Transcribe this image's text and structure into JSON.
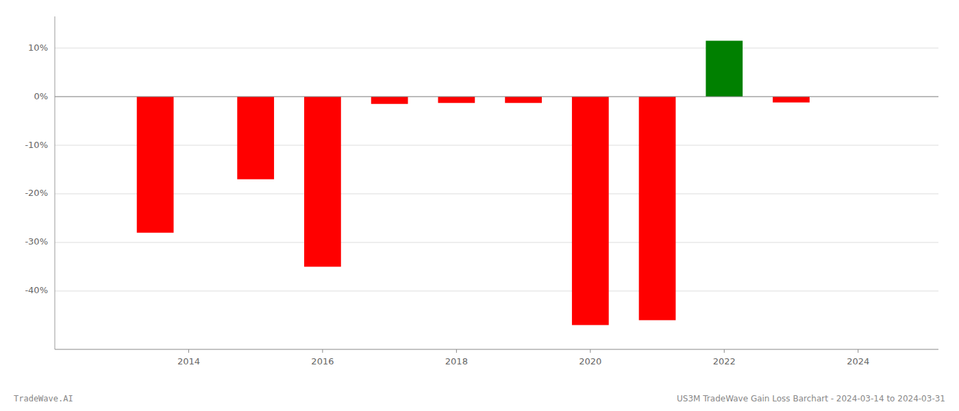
{
  "chart_data": {
    "type": "bar",
    "x": [
      2013.5,
      2015.0,
      2016.0,
      2017.0,
      2018.0,
      2019.0,
      2020.0,
      2021.0,
      2022.0,
      2023.0
    ],
    "values": [
      -0.28,
      -0.17,
      -0.35,
      -0.015,
      -0.013,
      -0.013,
      -0.47,
      -0.46,
      0.115,
      -0.012
    ],
    "colors": [
      "#ff0000",
      "#ff0000",
      "#ff0000",
      "#ff0000",
      "#ff0000",
      "#ff0000",
      "#ff0000",
      "#ff0000",
      "#008000",
      "#ff0000"
    ],
    "ylim": [
      -0.52,
      0.165
    ],
    "yticks": [
      {
        "value": -0.4,
        "label": "-40%"
      },
      {
        "value": -0.3,
        "label": "-30%"
      },
      {
        "value": -0.2,
        "label": "-20%"
      },
      {
        "value": -0.1,
        "label": "-10%"
      },
      {
        "value": 0.0,
        "label": "0%"
      },
      {
        "value": 0.1,
        "label": "10%"
      }
    ],
    "xlim": [
      2012.0,
      2025.2
    ],
    "xticks": [
      2014,
      2016,
      2018,
      2020,
      2022,
      2024
    ],
    "grid": true,
    "annotations": [
      "TradeWave.AI",
      "US3M TradeWave Gain Loss Barchart - 2024-03-14 to 2024-03-31"
    ]
  }
}
